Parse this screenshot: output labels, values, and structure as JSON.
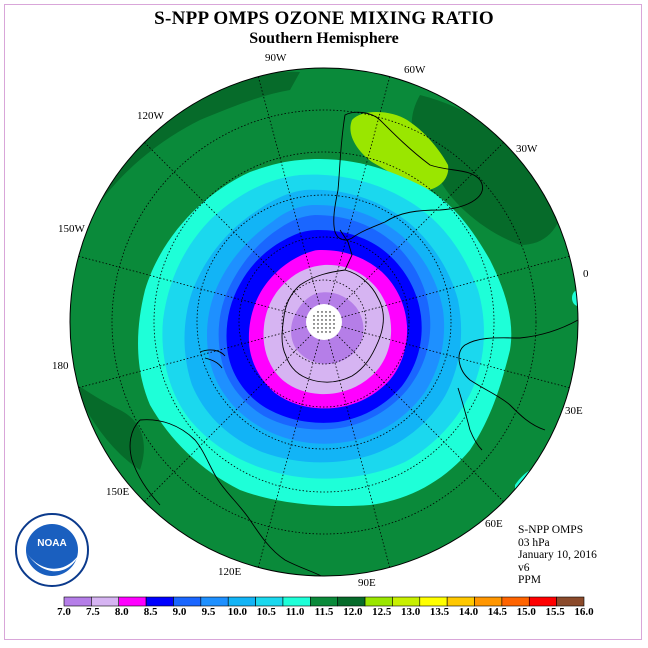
{
  "title": "S-NPP OMPS OZONE MIXING RATIO",
  "subtitle": "Southern Hemisphere",
  "longitudes": [
    "90W",
    "60W",
    "30W",
    "0",
    "30E",
    "60E",
    "90E",
    "120E",
    "150E",
    "180",
    "150W",
    "120W"
  ],
  "info": {
    "instrument": "S-NPP OMPS",
    "pressure": "03 hPa",
    "date": "January 10, 2016",
    "version": "v6",
    "units": "PPM"
  },
  "logo_text": "NOAA",
  "colorbar": {
    "labels": [
      "7.0",
      "7.5",
      "8.0",
      "8.5",
      "9.0",
      "9.5",
      "10.0",
      "10.5",
      "11.0",
      "11.5",
      "12.0",
      "12.5",
      "13.0",
      "13.5",
      "14.0",
      "14.5",
      "15.0",
      "15.5",
      "16.0"
    ],
    "colors": [
      "#b57ee8",
      "#d6b4f2",
      "#ff00ff",
      "#0000ff",
      "#1a66ff",
      "#1e90ff",
      "#12b4f6",
      "#1bd8ee",
      "#1effd8",
      "#0a8a3a",
      "#066b2a",
      "#9ae600",
      "#c8f000",
      "#ffff00",
      "#ffc800",
      "#ff9600",
      "#ff6400",
      "#ff0000",
      "#8b4a2b"
    ]
  },
  "map": {
    "projection": "south polar stereographic",
    "contour_levels_ppm": [
      7.5,
      8.0,
      8.5,
      9.0,
      9.5,
      10.0,
      10.5,
      11.0,
      11.5,
      12.0,
      12.5
    ],
    "background_field_ppm": 11.5
  }
}
